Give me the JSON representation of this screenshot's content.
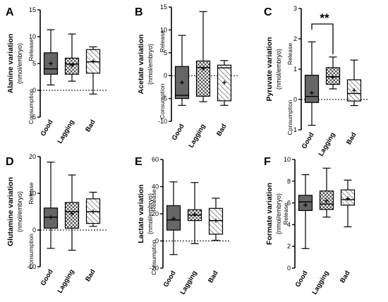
{
  "chart_data": [
    {
      "panel": "A",
      "type": "box",
      "ylabel": "Alanine variation",
      "ylabel_unit": "(nmol/embryo)",
      "top_label": "Release",
      "bottom_label": "Consumption",
      "categories": [
        "Good",
        "Lagging",
        "Bad"
      ],
      "ylim": [
        -5,
        15
      ],
      "yticks": [
        -5,
        0,
        5,
        10,
        15
      ],
      "zero_line": true,
      "boxes": [
        {
          "min": 1.0,
          "q1": 3.0,
          "median": 4.0,
          "q3": 7.0,
          "max": 11.3,
          "mean": 5.0,
          "fill": "solid"
        },
        {
          "min": 1.7,
          "q1": 3.0,
          "median": 4.9,
          "q3": 6.0,
          "max": 10.5,
          "mean": 4.7,
          "fill": "checker"
        },
        {
          "min": -0.7,
          "q1": 3.2,
          "median": 5.3,
          "q3": 7.6,
          "max": 8.1,
          "mean": 5.4,
          "fill": "hatch"
        }
      ]
    },
    {
      "panel": "B",
      "type": "box",
      "ylabel": "Acetate variation",
      "ylabel_unit": "(nmol/embryo)",
      "top_label": "Release",
      "bottom_label": "Consumption",
      "categories": [
        "Good",
        "Lagging",
        "Bad"
      ],
      "ylim": [
        -10,
        15
      ],
      "yticks": [
        -10,
        -5,
        0,
        5,
        10,
        15
      ],
      "zero_line": true,
      "boxes": [
        {
          "min": -6.5,
          "q1": -5.0,
          "median": -4.3,
          "q3": 2.0,
          "max": 8.8,
          "mean": -1.5,
          "fill": "solid"
        },
        {
          "min": -5.7,
          "q1": -4.5,
          "median": 1.8,
          "q3": 3.2,
          "max": 14.0,
          "mean": 1.5,
          "fill": "checker"
        },
        {
          "min": -6.5,
          "q1": -5.5,
          "median": 1.7,
          "q3": 2.3,
          "max": 3.3,
          "mean": -1.5,
          "fill": "hatch"
        }
      ]
    },
    {
      "panel": "C",
      "type": "box",
      "ylabel": "Pyruvate variation",
      "ylabel_unit": "(nmol/embryo)",
      "top_label": "Release",
      "bottom_label": "Consumption",
      "categories": [
        "Good",
        "Lagging",
        "Bad"
      ],
      "ylim": [
        -1,
        3
      ],
      "yticks": [
        -1,
        0,
        1,
        2,
        3
      ],
      "zero_line": true,
      "significance": {
        "label": "**",
        "from": 0,
        "to": 1
      },
      "boxes": [
        {
          "min": -0.85,
          "q1": -0.1,
          "median": 0.1,
          "q3": 0.8,
          "max": 1.9,
          "mean": 0.22,
          "fill": "solid"
        },
        {
          "min": 0.35,
          "q1": 0.5,
          "median": 0.75,
          "q3": 1.05,
          "max": 1.4,
          "mean": 0.73,
          "fill": "checker"
        },
        {
          "min": -0.2,
          "q1": -0.05,
          "median": 0.2,
          "q3": 0.65,
          "max": 1.3,
          "mean": 0.3,
          "fill": "hatch"
        }
      ]
    },
    {
      "panel": "D",
      "type": "box",
      "ylabel": "Glutamine variation",
      "ylabel_unit": "(nmol/embryo)",
      "top_label": "Release",
      "bottom_label": "Consumption",
      "categories": [
        "Good",
        "Lagging",
        "Bad"
      ],
      "ylim": [
        -10,
        20
      ],
      "yticks": [
        -10,
        0,
        10,
        20
      ],
      "zero_line": true,
      "boxes": [
        {
          "min": -5.0,
          "q1": 0.5,
          "median": 3.5,
          "q3": 6.0,
          "max": 18.5,
          "mean": 3.5,
          "fill": "solid"
        },
        {
          "min": -5.5,
          "q1": 0.5,
          "median": 5.0,
          "q3": 7.5,
          "max": 15.0,
          "mean": 4.5,
          "fill": "checker"
        },
        {
          "min": 1.0,
          "q1": 1.8,
          "median": 5.0,
          "q3": 8.5,
          "max": 10.3,
          "mean": 5.0,
          "fill": "hatch"
        }
      ]
    },
    {
      "panel": "E",
      "type": "box",
      "ylabel": "Lactate variation",
      "ylabel_unit": "(nmol/embryo)",
      "top_label": "Release",
      "bottom_label": "Consumption",
      "categories": [
        "Good",
        "Lagging",
        "Bad"
      ],
      "ylim": [
        -20,
        60
      ],
      "yticks": [
        -20,
        0,
        20,
        40,
        60
      ],
      "zero_line": true,
      "boxes": [
        {
          "min": -10.0,
          "q1": 8.0,
          "median": 15.5,
          "q3": 26.0,
          "max": 43.5,
          "mean": 16.5,
          "fill": "solid"
        },
        {
          "min": -2.0,
          "q1": 15.0,
          "median": 19.0,
          "q3": 23.0,
          "max": 43.0,
          "mean": 19.5,
          "fill": "checker"
        },
        {
          "min": 0.5,
          "q1": 5.0,
          "median": 15.0,
          "q3": 24.0,
          "max": 31.5,
          "mean": 15.0,
          "fill": "hatch"
        }
      ]
    },
    {
      "panel": "F",
      "type": "box",
      "ylabel": "Formate variation",
      "ylabel_unit": "(nmol/embryo)",
      "top_label": "Release",
      "bottom_label": "",
      "categories": [
        "Good",
        "Lagging",
        "Bad"
      ],
      "ylim": [
        0,
        10
      ],
      "yticks": [
        0,
        2,
        4,
        6,
        8,
        10
      ],
      "zero_line": false,
      "boxes": [
        {
          "min": 1.8,
          "q1": 5.3,
          "median": 6.1,
          "q3": 6.7,
          "max": 8.6,
          "mean": 5.8,
          "fill": "solid"
        },
        {
          "min": 4.7,
          "q1": 5.4,
          "median": 5.9,
          "q3": 7.1,
          "max": 9.2,
          "mean": 6.2,
          "fill": "checker"
        },
        {
          "min": 3.8,
          "q1": 5.8,
          "median": 6.3,
          "q3": 7.2,
          "max": 8.1,
          "mean": 6.4,
          "fill": "hatch"
        }
      ]
    }
  ],
  "colors": {
    "solid_fill": "#666666",
    "axis": "#000000"
  }
}
